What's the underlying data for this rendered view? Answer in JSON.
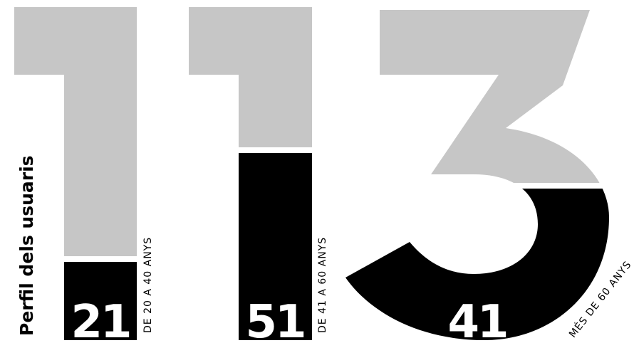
{
  "title": "Perfil dels usuaris",
  "total": "113",
  "chart_data": {
    "type": "bar",
    "title": "Perfil dels usuaris",
    "categories": [
      "DE 20 A 40 ANYS",
      "DE 41 A 60 ANYS",
      "MÉS DE 60 ANYS"
    ],
    "values": [
      21,
      51,
      41
    ],
    "total": 113,
    "colors": {
      "filled": "#000000",
      "empty": "#c6c6c6",
      "value_text": "#ffffff"
    }
  }
}
